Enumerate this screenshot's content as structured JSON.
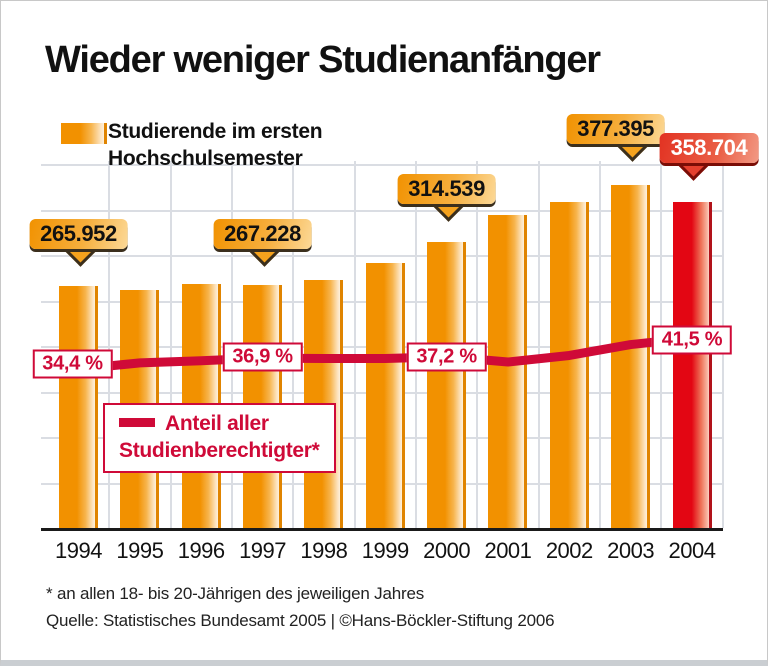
{
  "page": {
    "title": "Wieder weniger Studienanfänger"
  },
  "legend_students": {
    "line1": "Studierende im ersten",
    "line2": "Hochschulsemester"
  },
  "legend_share": {
    "line1": "Anteil aller",
    "line2": "Studienberechtigter*"
  },
  "footnotes": {
    "asterisk": "* an allen 18- bis 20-Jährigen des jeweiligen Jahres",
    "source": "Quelle: Statistisches Bundesamt 2005 | ©Hans-Böckler-Stiftung 2006"
  },
  "colors": {
    "bar_orange": "#f29100",
    "bar_orange_edge": "#e08400",
    "bar_red": "#e30613",
    "bar_red_edge": "#b1121a",
    "line_red": "#cf0a38",
    "grid": "#dadde3",
    "axis": "#1a1a1a",
    "callout_orange_from": "#f19201",
    "callout_orange_to": "#fcd998",
    "callout_red_from": "#e23222",
    "callout_red_to": "#f29a85",
    "text_black": "#111111"
  },
  "chart_data": {
    "type": "bar",
    "title": "Wieder weniger Studienanfänger",
    "categories": [
      1994,
      1995,
      1996,
      1997,
      1998,
      1999,
      2000,
      2001,
      2002,
      2003,
      2004
    ],
    "series": [
      {
        "name": "Studierende im ersten Hochschulsemester",
        "type": "bar",
        "values": [
          265952,
          262000,
          268000,
          267228,
          272500,
          291000,
          314539,
          344800,
          358800,
          377395,
          358704
        ],
        "labeled_values": {
          "1994": "265.952",
          "1997": "267.228",
          "2000": "314.539",
          "2003": "377.395",
          "2004": "358.704"
        }
      },
      {
        "name": "Anteil aller Studienberechtigter*",
        "type": "line",
        "unit": "%",
        "values": [
          34.4,
          35.8,
          36.3,
          36.9,
          36.8,
          36.8,
          37.2,
          36.0,
          37.5,
          40.0,
          41.5
        ],
        "labeled_values": {
          "1994": "34,4 %",
          "1997": "36,9 %",
          "2000": "37,2 %",
          "2004": "41,5 %"
        }
      }
    ],
    "callouts": [
      {
        "year": 1994,
        "text": "265.952",
        "style": "orange",
        "box_top": 218,
        "dx": 0
      },
      {
        "year": 1997,
        "text": "267.228",
        "style": "orange",
        "box_top": 218,
        "dx": 0
      },
      {
        "year": 2000,
        "text": "314.539",
        "style": "orange",
        "box_top": 173,
        "dx": 0
      },
      {
        "year": 2003,
        "text": "377.395",
        "style": "orange",
        "box_top": 113,
        "dx": -15
      },
      {
        "year": 2004,
        "text": "358.704",
        "style": "red",
        "box_top": 132,
        "dx": 17
      }
    ],
    "pct_labels": [
      {
        "year": 1994,
        "text": "34,4 %",
        "dx": -6,
        "dy": -5
      },
      {
        "year": 1997,
        "text": "36,9 %",
        "dx": 0,
        "dy": -1
      },
      {
        "year": 2000,
        "text": "37,2 %",
        "dx": 0,
        "dy": 0
      },
      {
        "year": 2004,
        "text": "41,5 %",
        "dx": 0,
        "dy": 2
      }
    ],
    "ylim": [
      0,
      400000
    ],
    "grid_step": 50000,
    "grid": true,
    "legend_position": "inside top-left (bars), inside middle-left (line)",
    "xlabel": "",
    "ylabel": ""
  }
}
